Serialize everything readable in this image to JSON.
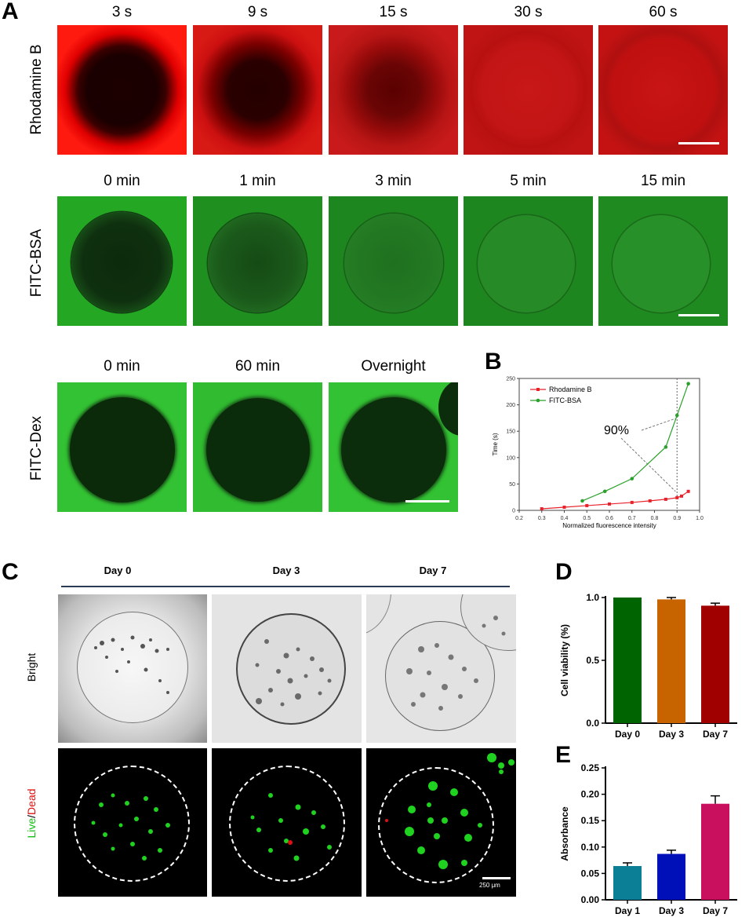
{
  "panels": {
    "a": "A",
    "b": "B",
    "c": "C",
    "d": "D",
    "e": "E"
  },
  "panel_a": {
    "rows": [
      {
        "label": "Rhodamine B",
        "times": [
          "3 s",
          "9 s",
          "15 s",
          "30 s",
          "60 s"
        ]
      },
      {
        "label": "FITC-BSA",
        "times": [
          "0 min",
          "1 min",
          "3 min",
          "5 min",
          "15 min"
        ]
      },
      {
        "label": "FITC-Dex",
        "times": [
          "0 min",
          "60 min",
          "Overnight"
        ]
      }
    ]
  },
  "panel_c": {
    "days": [
      "Day 0",
      "Day 3",
      "Day 7"
    ],
    "row_labels": {
      "bright": "Bright",
      "live": "Live",
      "slash": "/",
      "dead": "Dead"
    },
    "scalebar_label": "250 μm"
  },
  "chart_data": [
    {
      "type": "line",
      "panel": "B",
      "title": "",
      "xlabel": "Normalized fluorescence intensity",
      "ylabel": "Time (s)",
      "xlim": [
        0.2,
        1.0
      ],
      "ylim": [
        0,
        250
      ],
      "xticks": [
        "0.2",
        "0.3",
        "0.4",
        "0.5",
        "0.6",
        "0.7",
        "0.8",
        "0.9",
        "1.0"
      ],
      "yticks": [
        "0",
        "50",
        "100",
        "150",
        "200",
        "250"
      ],
      "legend": "top-left",
      "annotation": "90%",
      "series": [
        {
          "name": "Rhodamine B",
          "color": "#e8222b",
          "x": [
            0.3,
            0.4,
            0.5,
            0.6,
            0.7,
            0.78,
            0.85,
            0.9,
            0.92,
            0.95
          ],
          "y": [
            3,
            6,
            9,
            12,
            15,
            18,
            21,
            24,
            27,
            36
          ]
        },
        {
          "name": "FITC-BSA",
          "color": "#2aa12a",
          "x": [
            0.48,
            0.58,
            0.7,
            0.85,
            0.9,
            0.95
          ],
          "y": [
            18,
            36,
            60,
            120,
            180,
            240
          ]
        }
      ]
    },
    {
      "type": "bar",
      "panel": "D",
      "ylabel": "Cell viability (%)",
      "categories": [
        "Day 0",
        "Day 3",
        "Day 7"
      ],
      "values": [
        1.0,
        0.985,
        0.935
      ],
      "errors": [
        0,
        0.015,
        0.02
      ],
      "colors": [
        "#006400",
        "#c86400",
        "#a00000"
      ],
      "ylim": [
        0,
        1.0
      ],
      "yticks": [
        "0.0",
        "0.5",
        "1.0"
      ]
    },
    {
      "type": "bar",
      "panel": "E",
      "ylabel": "Absorbance",
      "categories": [
        "Day 1",
        "Day 3",
        "Day 7"
      ],
      "values": [
        0.064,
        0.087,
        0.182
      ],
      "errors": [
        0.006,
        0.007,
        0.015
      ],
      "colors": [
        "#0b7f95",
        "#0010b8",
        "#c8105e"
      ],
      "ylim": [
        0,
        0.25
      ],
      "yticks": [
        "0.00",
        "0.05",
        "0.10",
        "0.15",
        "0.20",
        "0.25"
      ]
    }
  ]
}
